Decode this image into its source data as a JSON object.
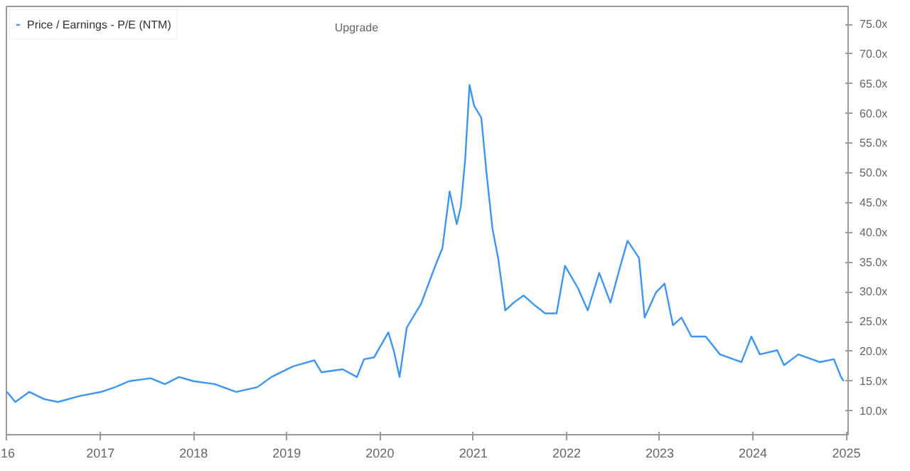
{
  "chart_data": {
    "type": "line",
    "annotations": [
      "Upgrade"
    ],
    "x": [
      "2016-01-01",
      "2016-02-03",
      "2016-03-29",
      "2016-05-25",
      "2016-07-19",
      "2016-10-12",
      "2017-01-04",
      "2017-02-28",
      "2017-04-24",
      "2017-07-17",
      "2017-09-11",
      "2017-11-05",
      "2018-01-01",
      "2018-03-25",
      "2018-06-17",
      "2018-09-08",
      "2018-11-02",
      "2019-01-26",
      "2019-04-19",
      "2019-05-17",
      "2019-08-08",
      "2019-10-03",
      "2019-10-31",
      "2019-12-09",
      "2020-02-03",
      "2020-02-25",
      "2020-03-18",
      "2020-04-15",
      "2020-06-10",
      "2020-08-05",
      "2020-09-02",
      "2020-09-30",
      "2020-10-28",
      "2020-11-13",
      "2020-11-30",
      "2020-12-17",
      "2021-01-04",
      "2021-02-01",
      "2021-02-23",
      "2021-03-17",
      "2021-04-08",
      "2021-05-06",
      "2021-06-08",
      "2021-07-17",
      "2021-08-31",
      "2021-10-09",
      "2021-11-23",
      "2021-12-26",
      "2022-02-14",
      "2022-03-25",
      "2022-05-09",
      "2022-06-22",
      "2022-07-31",
      "2022-08-28",
      "2022-10-12",
      "2022-11-03",
      "2022-12-17",
      "2023-01-20",
      "2023-02-22",
      "2023-03-27",
      "2023-05-05",
      "2023-06-30",
      "2023-08-25",
      "2023-11-17",
      "2023-12-26",
      "2024-01-28",
      "2024-04-05",
      "2024-05-02",
      "2024-06-27",
      "2024-09-19",
      "2024-11-13",
      "2024-12-11",
      "2024-12-22"
    ],
    "series": [
      {
        "name": "Price / Earnings - P/E (NTM)",
        "color": "#3d95f0",
        "values": [
          13.2,
          11.5,
          13.2,
          12,
          11.5,
          12.5,
          13.2,
          14,
          15,
          15.5,
          14.5,
          15.7,
          15,
          14.5,
          13.2,
          14,
          15.7,
          17.5,
          18.5,
          16.5,
          17,
          15.7,
          18.7,
          19,
          23.2,
          20,
          15.7,
          24,
          28,
          34.4,
          37.4,
          46.9,
          41.4,
          44.4,
          52.3,
          64.8,
          61.3,
          59.3,
          49.4,
          40.6,
          35.7,
          26.9,
          28.2,
          29.4,
          27.7,
          26.4,
          26.4,
          34.4,
          30.7,
          26.9,
          33.2,
          28.2,
          34.4,
          38.6,
          35.7,
          25.7,
          29.9,
          31.4,
          24.4,
          25.7,
          22.5,
          22.5,
          19.5,
          18.2,
          22.5,
          19.5,
          20.2,
          17.7,
          19.5,
          18.2,
          18.7,
          15.7,
          15
        ]
      }
    ],
    "xlim": [
      "2015-12-30",
      "2025-01-08"
    ],
    "xticks": [
      {
        "value": "2016-01-01",
        "label": "16"
      },
      {
        "value": "2017-01-01",
        "label": "2017"
      },
      {
        "value": "2018-01-01",
        "label": "2018"
      },
      {
        "value": "2019-01-01",
        "label": "2019"
      },
      {
        "value": "2020-01-01",
        "label": "2020"
      },
      {
        "value": "2021-01-01",
        "label": "2021"
      },
      {
        "value": "2022-01-01",
        "label": "2022"
      },
      {
        "value": "2023-01-01",
        "label": "2023"
      },
      {
        "value": "2024-01-01",
        "label": "2024"
      },
      {
        "value": "2025-01-01",
        "label": "2025"
      }
    ],
    "ylim": [
      6,
      78
    ],
    "yticks": [
      {
        "value": 10,
        "label": "10.0x"
      },
      {
        "value": 15,
        "label": "15.0x"
      },
      {
        "value": 20,
        "label": "20.0x"
      },
      {
        "value": 25,
        "label": "25.0x"
      },
      {
        "value": 30,
        "label": "30.0x"
      },
      {
        "value": 35,
        "label": "35.0x"
      },
      {
        "value": 40,
        "label": "40.0x"
      },
      {
        "value": 45,
        "label": "45.0x"
      },
      {
        "value": 50,
        "label": "50.0x"
      },
      {
        "value": 55,
        "label": "55.0x"
      },
      {
        "value": 60,
        "label": "60.0x"
      },
      {
        "value": 65,
        "label": "65.0x"
      },
      {
        "value": 70,
        "label": "70.0x"
      },
      {
        "value": 75,
        "label": "75.0x"
      }
    ],
    "legend": "top left",
    "grid": false,
    "marker": "none",
    "line_style": "solid"
  }
}
